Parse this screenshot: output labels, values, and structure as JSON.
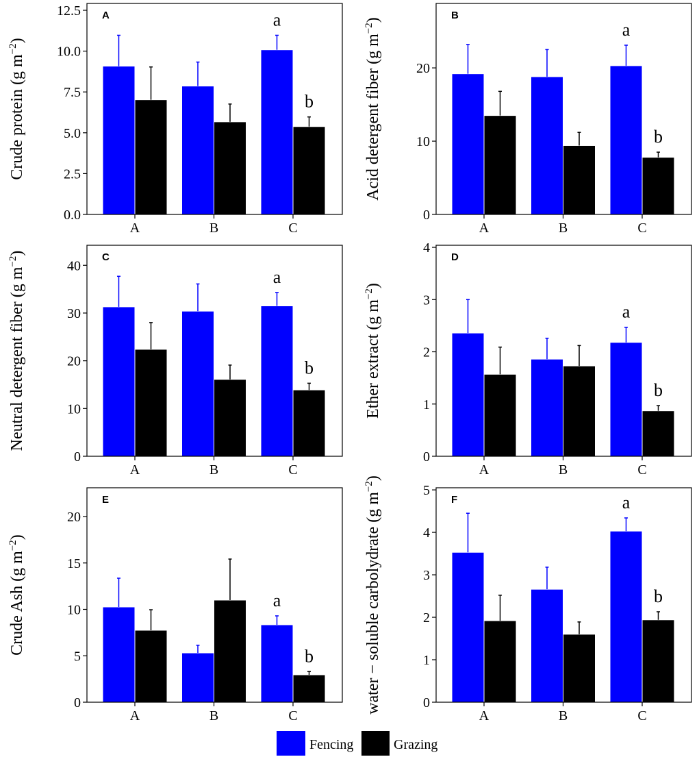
{
  "legend": {
    "placement": "bottom-center",
    "items": [
      {
        "label": "Fencing",
        "color": "#0000FF"
      },
      {
        "label": "Grazing",
        "color": "#000000"
      }
    ]
  },
  "chart_data": [
    {
      "panel": "A",
      "type": "bar",
      "categories": [
        "A",
        "B",
        "C"
      ],
      "ylabel": {
        "prefix": "Crude protein (g m",
        "sup": "−2",
        "suffix": ")"
      },
      "ylim": [
        0,
        12.92
      ],
      "yticks": [
        "0.0",
        "2.5",
        "5.0",
        "7.5",
        "10.0",
        "12.5"
      ],
      "grid": false,
      "series": [
        {
          "legend_index": 0,
          "values": [
            9.08,
            7.86,
            10.08
          ],
          "errors": [
            1.89,
            1.47,
            0.89
          ]
        },
        {
          "legend_index": 1,
          "values": [
            7.02,
            5.67,
            5.38
          ],
          "errors": [
            2.01,
            1.09,
            0.59
          ]
        }
      ],
      "annotations": [
        {
          "text": "a",
          "series": 0,
          "category": 2
        },
        {
          "text": "b",
          "series": 1,
          "category": 2
        }
      ]
    },
    {
      "panel": "B",
      "type": "bar",
      "categories": [
        "A",
        "B",
        "C"
      ],
      "ylabel": {
        "prefix": "Acid detergent fiber (g m",
        "sup": "−2",
        "suffix": ")"
      },
      "ylim": [
        0,
        28.8
      ],
      "yticks": [
        "0",
        "10",
        "20"
      ],
      "grid": false,
      "series": [
        {
          "legend_index": 0,
          "values": [
            19.2,
            18.8,
            20.3
          ],
          "errors": [
            4.0,
            3.7,
            2.8
          ]
        },
        {
          "legend_index": 1,
          "values": [
            13.5,
            9.4,
            7.8
          ],
          "errors": [
            3.3,
            1.8,
            0.7
          ]
        }
      ],
      "annotations": [
        {
          "text": "a",
          "series": 0,
          "category": 2
        },
        {
          "text": "b",
          "series": 1,
          "category": 2
        }
      ]
    },
    {
      "panel": "C",
      "type": "bar",
      "categories": [
        "A",
        "B",
        "C"
      ],
      "ylabel": {
        "prefix": "Neutral detergent fiber (g m",
        "sup": "−2",
        "suffix": ")"
      },
      "ylim": [
        0,
        44.2
      ],
      "yticks": [
        "0",
        "10",
        "20",
        "30",
        "40"
      ],
      "grid": false,
      "series": [
        {
          "legend_index": 0,
          "values": [
            31.3,
            30.4,
            31.5
          ],
          "errors": [
            6.4,
            5.7,
            2.8
          ]
        },
        {
          "legend_index": 1,
          "values": [
            22.4,
            16.1,
            13.9
          ],
          "errors": [
            5.6,
            3.0,
            1.4
          ]
        }
      ],
      "annotations": [
        {
          "text": "a",
          "series": 0,
          "category": 2
        },
        {
          "text": "b",
          "series": 1,
          "category": 2
        }
      ]
    },
    {
      "panel": "D",
      "type": "bar",
      "categories": [
        "A",
        "B",
        "C"
      ],
      "ylabel": {
        "prefix": "Ether extract (g m",
        "sup": "−2",
        "suffix": ")"
      },
      "ylim": [
        0,
        4.04
      ],
      "yticks": [
        "0",
        "1",
        "2",
        "3",
        "4"
      ],
      "grid": false,
      "series": [
        {
          "legend_index": 0,
          "values": [
            2.36,
            1.86,
            2.18
          ],
          "errors": [
            0.64,
            0.4,
            0.29
          ]
        },
        {
          "legend_index": 1,
          "values": [
            1.57,
            1.73,
            0.87
          ],
          "errors": [
            0.52,
            0.39,
            0.1
          ]
        }
      ],
      "annotations": [
        {
          "text": "a",
          "series": 0,
          "category": 2
        },
        {
          "text": "b",
          "series": 1,
          "category": 2
        }
      ]
    },
    {
      "panel": "E",
      "type": "bar",
      "categories": [
        "A",
        "B",
        "C"
      ],
      "ylabel": {
        "prefix": "Crude Ash (g m",
        "sup": "−2",
        "suffix": ")"
      },
      "ylim": [
        0,
        23.1
      ],
      "yticks": [
        "0",
        "5",
        "10",
        "15",
        "20"
      ],
      "grid": false,
      "series": [
        {
          "legend_index": 0,
          "values": [
            10.26,
            5.31,
            8.34
          ],
          "errors": [
            3.1,
            0.82,
            0.96
          ]
        },
        {
          "legend_index": 1,
          "values": [
            7.75,
            11.0,
            2.95
          ],
          "errors": [
            2.21,
            4.42,
            0.35
          ]
        }
      ],
      "annotations": [
        {
          "text": "a",
          "series": 0,
          "category": 2
        },
        {
          "text": "b",
          "series": 1,
          "category": 2
        }
      ]
    },
    {
      "panel": "F",
      "type": "bar",
      "categories": [
        "A",
        "B",
        "C"
      ],
      "ylabel": {
        "prefix": "water − soluble carbolydrate (g m",
        "sup": "−2",
        "suffix": ")"
      },
      "ylim": [
        0,
        5.05
      ],
      "yticks": [
        "0",
        "1",
        "2",
        "3",
        "4",
        "5"
      ],
      "grid": false,
      "series": [
        {
          "legend_index": 0,
          "values": [
            3.53,
            2.66,
            4.03
          ],
          "errors": [
            0.92,
            0.52,
            0.31
          ]
        },
        {
          "legend_index": 1,
          "values": [
            1.92,
            1.6,
            1.94
          ],
          "errors": [
            0.6,
            0.29,
            0.19
          ]
        }
      ],
      "annotations": [
        {
          "text": "a",
          "series": 0,
          "category": 2
        },
        {
          "text": "b",
          "series": 1,
          "category": 2
        }
      ]
    }
  ]
}
